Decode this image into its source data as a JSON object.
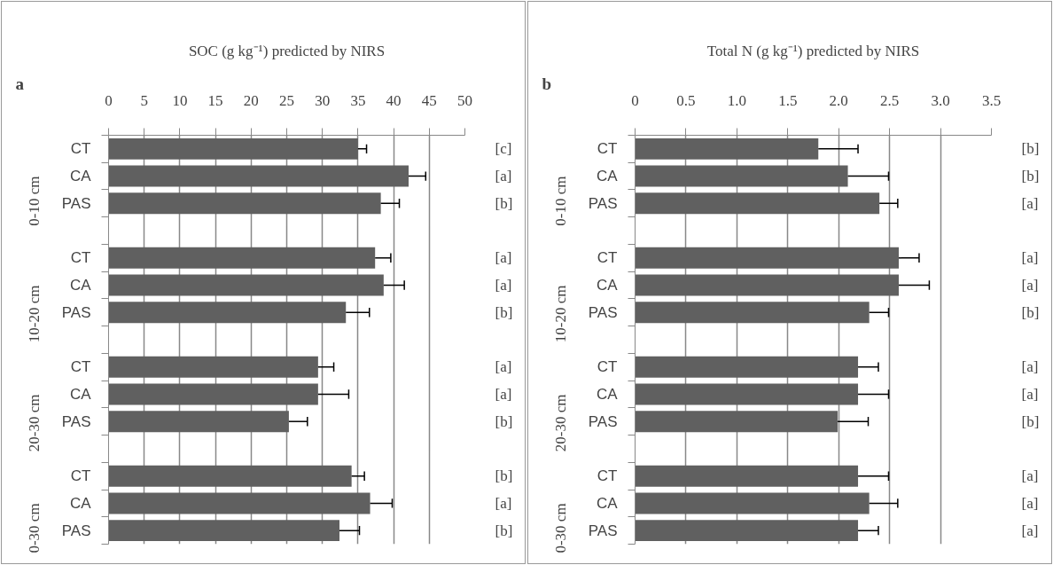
{
  "chart_data": [
    {
      "type": "bar",
      "orientation": "horizontal",
      "title": "SOC (g kg⁻¹) predicted by NIRS",
      "color": "#606060",
      "annotations": [
        "a",
        "0-10 cm",
        "10-20 cm",
        "20-30 cm",
        "0-30 cm"
      ],
      "categories": [
        "CT",
        "CA",
        "PAS",
        null,
        "CT",
        "CA",
        "PAS",
        null,
        "CT",
        "CA",
        "PAS",
        null,
        "CT",
        "CA",
        "PAS"
      ],
      "values": [
        35.0,
        42.1,
        38.2,
        null,
        37.4,
        38.6,
        33.3,
        null,
        29.4,
        29.4,
        25.3,
        null,
        34.1,
        36.7,
        32.4
      ],
      "errors": [
        [
          35.0,
          36.2
        ],
        [
          42.1,
          44.5
        ],
        [
          38.2,
          40.8
        ],
        null,
        [
          37.4,
          39.6
        ],
        [
          38.6,
          41.5
        ],
        [
          33.3,
          36.6
        ],
        null,
        [
          29.4,
          31.6
        ],
        [
          29.4,
          33.7
        ],
        [
          25.3,
          27.9
        ],
        null,
        [
          34.1,
          35.9
        ],
        [
          36.7,
          39.8
        ],
        [
          32.4,
          35.2
        ]
      ],
      "value_labels": [
        "[c]",
        "[a]",
        "[b]",
        null,
        "[a]",
        "[a]",
        "[b]",
        null,
        "[a]",
        "[a]",
        "[b]",
        null,
        "[b]",
        "[a]",
        "[b]"
      ],
      "xlim": [
        0,
        50
      ],
      "xticks": [
        0,
        5,
        10,
        15,
        20,
        25,
        30,
        35,
        40,
        45,
        50
      ],
      "grid": "x"
    },
    {
      "type": "bar",
      "orientation": "horizontal",
      "title": "Total N (g kg⁻¹) predicted by NIRS",
      "color": "#606060",
      "annotations": [
        "b",
        "0-10 cm",
        "10-20 cm",
        "20-30 cm",
        "0-30 cm"
      ],
      "categories": [
        "CT",
        "CA",
        "PAS",
        null,
        "CT",
        "CA",
        "PAS",
        null,
        "CT",
        "CA",
        "PAS",
        null,
        "CT",
        "CA",
        "PAS"
      ],
      "values": [
        1.8,
        2.09,
        2.4,
        null,
        2.59,
        2.59,
        2.3,
        null,
        2.19,
        2.19,
        1.99,
        null,
        2.19,
        2.3,
        2.19
      ],
      "errors": [
        [
          1.8,
          2.19
        ],
        [
          2.09,
          2.49
        ],
        [
          2.4,
          2.58
        ],
        null,
        [
          2.59,
          2.79
        ],
        [
          2.59,
          2.89
        ],
        [
          2.3,
          2.49
        ],
        null,
        [
          2.19,
          2.39
        ],
        [
          2.19,
          2.49
        ],
        [
          1.99,
          2.29
        ],
        null,
        [
          2.19,
          2.49
        ],
        [
          2.3,
          2.58
        ],
        [
          2.19,
          2.39
        ]
      ],
      "value_labels": [
        "[b]",
        "[b]",
        "[a]",
        null,
        "[a]",
        "[a]",
        "[b]",
        null,
        "[a]",
        "[a]",
        "[b]",
        null,
        "[a]",
        "[a]",
        "[a]"
      ],
      "xlim": [
        0,
        3.5
      ],
      "xticks": [
        0,
        0.5,
        {
          "value": 1,
          "label": "1.0"
        },
        1.5,
        {
          "value": 2,
          "label": "2.0"
        },
        2.5,
        {
          "value": 3,
          "label": "3.0"
        },
        3.5
      ],
      "grid": "x"
    }
  ]
}
